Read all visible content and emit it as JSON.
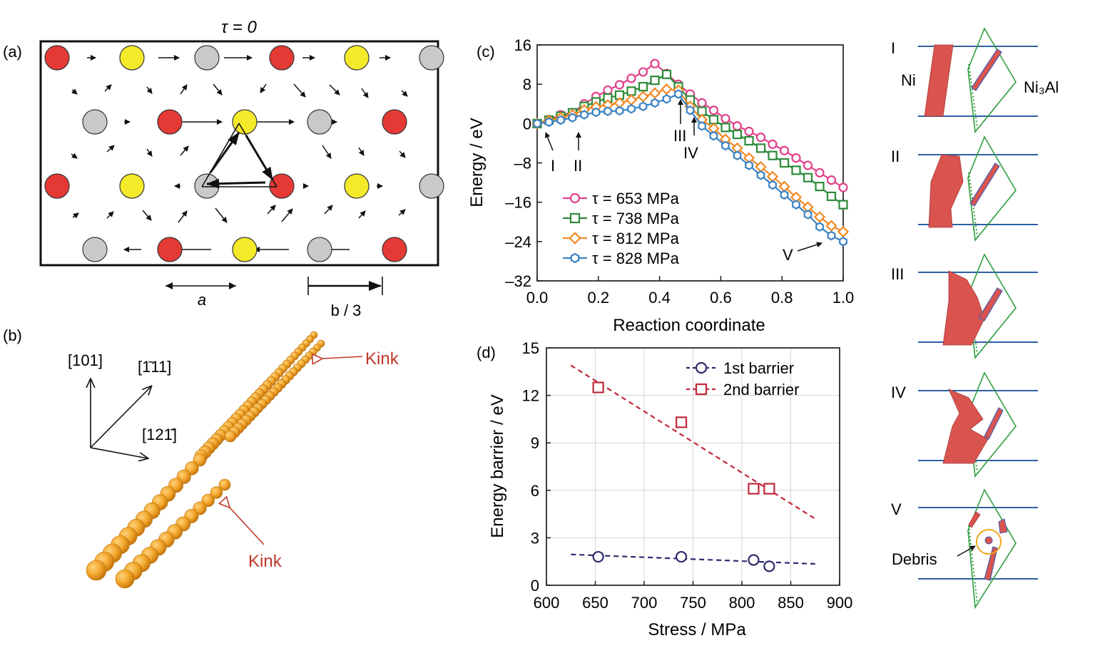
{
  "colors": {
    "red_atom": "#e53935",
    "yellow_atom": "#f4ea2a",
    "grey_atom": "#c9c9c9",
    "kink_label": "#c0392b",
    "dislocation": "#f2a52a",
    "ni_atoms": "#d9534f",
    "glide_plane": "#2e9e3e",
    "fault_lines": "#2f5fa5"
  },
  "panel_a": {
    "label": "(a)",
    "title": "τ = 0",
    "arrow_a_label": "a",
    "arrow_b_label": "b / 3",
    "atom_rows": [
      [
        "red",
        "yellow",
        "grey",
        "red",
        "yellow",
        "grey"
      ],
      [
        "grey",
        "red",
        "yellow",
        "grey",
        "red"
      ],
      [
        "red",
        "yellow",
        "grey",
        "red",
        "yellow",
        "grey"
      ],
      [
        "grey",
        "red",
        "yellow",
        "grey",
        "red"
      ]
    ]
  },
  "panel_b": {
    "label": "(b)",
    "dir_1": "[101]",
    "dir_2": "[1̄11]",
    "dir_3": "[121̄]",
    "kink_top": "Kink",
    "kink_bottom": "Kink"
  },
  "panel_right": {
    "stage_labels": [
      "I",
      "II",
      "III",
      "IV",
      "V"
    ],
    "ni_label": "Ni",
    "ni3al_label": "Ni₃Al",
    "debris_label": "Debris"
  },
  "chart_data": [
    {
      "panel_label": "(c)",
      "type": "line",
      "xlabel": "Reaction coordinate",
      "ylabel": "Energy / eV",
      "xlim": [
        0.0,
        1.0
      ],
      "ylim": [
        -32,
        16
      ],
      "xticks": [
        "0.0",
        "0.2",
        "0.4",
        "0.6",
        "0.8",
        "1.0"
      ],
      "yticks": [
        "16",
        "8",
        "0",
        "–8",
        "–16",
        "–24",
        "–32"
      ],
      "grid": false,
      "legend_position": "lower-left",
      "x": [
        0.0,
        0.0385,
        0.0769,
        0.1154,
        0.1538,
        0.1923,
        0.2308,
        0.2692,
        0.3077,
        0.3462,
        0.3846,
        0.4231,
        0.4615,
        0.5,
        0.5385,
        0.5769,
        0.6154,
        0.6538,
        0.6923,
        0.7308,
        0.7692,
        0.8077,
        0.8462,
        0.8846,
        0.9231,
        0.9615,
        1.0
      ],
      "series": [
        {
          "name": "τ = 653 MPa",
          "marker": "circle",
          "color": "#e0408a",
          "values": [
            0.0,
            0.8,
            1.8,
            2.2,
            4.0,
            5.5,
            6.8,
            7.9,
            9.2,
            10.5,
            12.2,
            10.2,
            8.0,
            6.0,
            4.2,
            2.7,
            1.0,
            -0.5,
            -1.6,
            -2.8,
            -4.2,
            -5.5,
            -7.0,
            -8.5,
            -10.0,
            -11.5,
            -13.0
          ]
        },
        {
          "name": "τ = 738 MPa",
          "marker": "square",
          "color": "#2e8b3a",
          "values": [
            0.0,
            0.7,
            1.5,
            2.2,
            3.5,
            4.4,
            5.2,
            5.8,
            6.6,
            7.5,
            8.8,
            10.0,
            7.5,
            4.8,
            2.5,
            0.8,
            -0.8,
            -2.2,
            -3.5,
            -5.0,
            -6.5,
            -8.0,
            -9.5,
            -11.0,
            -12.8,
            -14.8,
            -16.5
          ]
        },
        {
          "name": "τ = 812 MPa",
          "marker": "diamond",
          "color": "#f08a24",
          "values": [
            0.0,
            0.6,
            1.2,
            1.8,
            2.8,
            3.4,
            3.8,
            4.2,
            4.8,
            5.5,
            6.2,
            7.0,
            6.8,
            3.5,
            0.8,
            -1.0,
            -3.2,
            -5.0,
            -7.0,
            -8.8,
            -10.8,
            -12.8,
            -15.0,
            -17.0,
            -19.0,
            -20.8,
            -22.0
          ]
        },
        {
          "name": "τ = 828 MPa",
          "marker": "hexagon",
          "color": "#3a82c4",
          "values": [
            0.0,
            0.3,
            0.7,
            1.2,
            1.8,
            2.3,
            2.5,
            2.6,
            3.0,
            3.5,
            4.2,
            5.0,
            6.0,
            2.7,
            -0.5,
            -2.5,
            -4.5,
            -6.5,
            -8.5,
            -10.5,
            -12.5,
            -14.5,
            -16.5,
            -18.5,
            -21.0,
            -22.8,
            -24.0
          ]
        }
      ],
      "annotations": [
        "I",
        "II",
        "III",
        "IV",
        "V"
      ]
    },
    {
      "panel_label": "(d)",
      "type": "scatter",
      "xlabel": "Stress /  MPa",
      "ylabel": "Energy barrier / eV",
      "xlim": [
        600,
        900
      ],
      "ylim": [
        0,
        15
      ],
      "xticks": [
        "600",
        "650",
        "700",
        "750",
        "800",
        "850",
        "900"
      ],
      "yticks": [
        "0",
        "3",
        "6",
        "9",
        "12",
        "15"
      ],
      "grid": true,
      "legend_position": "top-right",
      "series": [
        {
          "name": "1st barrier",
          "marker": "circle",
          "color": "#2c2a6b",
          "x": [
            653,
            738,
            812,
            828
          ],
          "values": [
            1.8,
            1.8,
            1.6,
            1.2
          ],
          "fit": {
            "x": [
              625,
              875
            ],
            "y": [
              1.95,
              1.35
            ]
          }
        },
        {
          "name": "2nd barrier",
          "marker": "square",
          "color": "#c0283a",
          "x": [
            653,
            738,
            812,
            828
          ],
          "values": [
            12.5,
            10.3,
            6.1,
            6.1
          ],
          "fit": {
            "x": [
              625,
              875
            ],
            "y": [
              13.9,
              4.2
            ]
          }
        }
      ]
    }
  ]
}
